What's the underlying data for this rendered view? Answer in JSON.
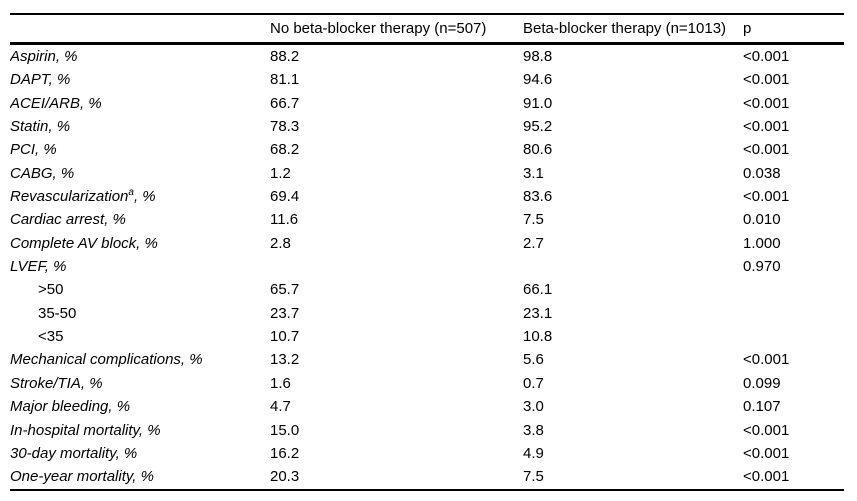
{
  "colors": {
    "background": "#ffffff",
    "text": "#000000",
    "rule": "#000000"
  },
  "table": {
    "columns": [
      "",
      "No beta-blocker therapy (n=507)",
      "Beta-blocker therapy (n=1013)",
      "p"
    ],
    "rows": [
      {
        "label": "Aspirin, %",
        "sup": "",
        "suffix": "",
        "italic": true,
        "indent": false,
        "no_bb": "88.2",
        "bb": "98.8",
        "p": "<0.001"
      },
      {
        "label": "DAPT, %",
        "sup": "",
        "suffix": "",
        "italic": true,
        "indent": false,
        "no_bb": "81.1",
        "bb": "94.6",
        "p": "<0.001"
      },
      {
        "label": "ACEI/ARB, %",
        "sup": "",
        "suffix": "",
        "italic": true,
        "indent": false,
        "no_bb": "66.7",
        "bb": "91.0",
        "p": "<0.001"
      },
      {
        "label": "Statin, %",
        "sup": "",
        "suffix": "",
        "italic": true,
        "indent": false,
        "no_bb": "78.3",
        "bb": "95.2",
        "p": "<0.001"
      },
      {
        "label": "PCI, %",
        "sup": "",
        "suffix": "",
        "italic": true,
        "indent": false,
        "no_bb": "68.2",
        "bb": "80.6",
        "p": "<0.001"
      },
      {
        "label": "CABG, %",
        "sup": "",
        "suffix": "",
        "italic": true,
        "indent": false,
        "no_bb": "1.2",
        "bb": "3.1",
        "p": "0.038"
      },
      {
        "label": "Revascularization",
        "sup": "a",
        "suffix": ", %",
        "italic": true,
        "indent": false,
        "no_bb": "69.4",
        "bb": "83.6",
        "p": "<0.001"
      },
      {
        "label": "Cardiac arrest, %",
        "sup": "",
        "suffix": "",
        "italic": true,
        "indent": false,
        "no_bb": "11.6",
        "bb": "7.5",
        "p": "0.010"
      },
      {
        "label": "Complete AV block, %",
        "sup": "",
        "suffix": "",
        "italic": true,
        "indent": false,
        "no_bb": "2.8",
        "bb": "2.7",
        "p": "1.000"
      },
      {
        "label": "LVEF, %",
        "sup": "",
        "suffix": "",
        "italic": true,
        "indent": false,
        "no_bb": "",
        "bb": "",
        "p": "0.970"
      },
      {
        "label": ">50",
        "sup": "",
        "suffix": "",
        "italic": false,
        "indent": true,
        "no_bb": "65.7",
        "bb": "66.1",
        "p": ""
      },
      {
        "label": "35-50",
        "sup": "",
        "suffix": "",
        "italic": false,
        "indent": true,
        "no_bb": "23.7",
        "bb": "23.1",
        "p": ""
      },
      {
        "label": "<35",
        "sup": "",
        "suffix": "",
        "italic": false,
        "indent": true,
        "no_bb": "10.7",
        "bb": "10.8",
        "p": ""
      },
      {
        "label": "Mechanical complications, %",
        "sup": "",
        "suffix": "",
        "italic": true,
        "indent": false,
        "no_bb": "13.2",
        "bb": "5.6",
        "p": "<0.001"
      },
      {
        "label": "Stroke/TIA, %",
        "sup": "",
        "suffix": "",
        "italic": true,
        "indent": false,
        "no_bb": "1.6",
        "bb": "0.7",
        "p": "0.099"
      },
      {
        "label": "Major bleeding, %",
        "sup": "",
        "suffix": "",
        "italic": true,
        "indent": false,
        "no_bb": "4.7",
        "bb": "3.0",
        "p": "0.107"
      },
      {
        "label": "In-hospital mortality, %",
        "sup": "",
        "suffix": "",
        "italic": true,
        "indent": false,
        "no_bb": "15.0",
        "bb": "3.8",
        "p": "<0.001"
      },
      {
        "label": "30-day mortality, %",
        "sup": "",
        "suffix": "",
        "italic": true,
        "indent": false,
        "no_bb": "16.2",
        "bb": "4.9",
        "p": "<0.001"
      },
      {
        "label": "One-year mortality, %",
        "sup": "",
        "suffix": "",
        "italic": true,
        "indent": false,
        "no_bb": "20.3",
        "bb": "7.5",
        "p": "<0.001"
      }
    ]
  }
}
